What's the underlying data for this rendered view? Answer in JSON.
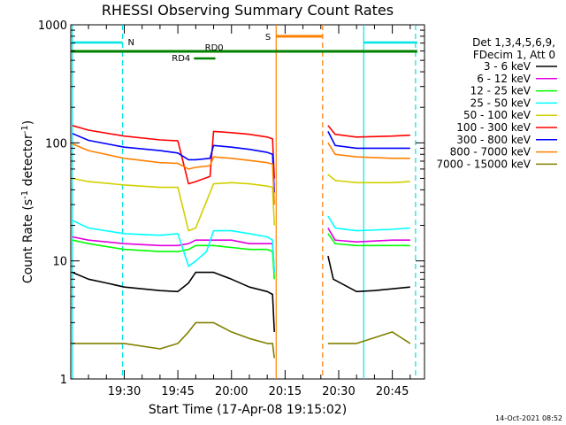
{
  "chart_data": {
    "type": "line",
    "title": "RHESSI Observing Summary Count Rates",
    "xlabel": "Start Time (17-Apr-08 19:15:02)",
    "ylabel_main": "Count Rate (s",
    "ylabel_sup1": "-1",
    "ylabel_mid": " detector",
    "ylabel_sup2": "-1",
    "ylabel_end": ")",
    "y_scale": "log",
    "xlim": [
      "19:15:02",
      "20:54:00"
    ],
    "ylim": [
      1,
      1000
    ],
    "x_ticks": [
      "19:30",
      "19:45",
      "20:00",
      "20:15",
      "20:30",
      "20:45"
    ],
    "y_ticks": [
      "1",
      "10",
      "100",
      "1000"
    ],
    "legend_header": [
      "Det 1,3,4,5,6,9,",
      "FDecim 1, Att 0"
    ],
    "legend_position": "right",
    "footer_timestamp": "14-Oct-2021 08:52",
    "flags": [
      {
        "label": "N",
        "color": "#00e5e5",
        "segments": [
          [
            "19:15:02",
            "19:29:30"
          ],
          [
            "20:37:00",
            "20:52:00"
          ]
        ]
      },
      {
        "label": "S",
        "color": "#ff8000",
        "segments": [
          [
            "20:12:30",
            "20:25:30"
          ]
        ]
      },
      {
        "label": "RD0",
        "color": "#008000",
        "segments": [
          [
            "19:15:02",
            "20:52:00"
          ]
        ]
      },
      {
        "label": "RD4",
        "color": "#008000",
        "segments": [
          [
            "19:49:30",
            "19:55:30"
          ]
        ]
      }
    ],
    "vlines": [
      {
        "time": "19:15:30",
        "color": "#00e5e5",
        "style": "solid"
      },
      {
        "time": "19:29:30",
        "color": "#00e5e5",
        "style": "dashed"
      },
      {
        "time": "20:12:30",
        "color": "#ff8000",
        "style": "solid"
      },
      {
        "time": "20:25:30",
        "color": "#ff8000",
        "style": "dashed"
      },
      {
        "time": "20:37:00",
        "color": "#00e5e5",
        "style": "solid"
      },
      {
        "time": "20:51:30",
        "color": "#00e5e5",
        "style": "dashed"
      }
    ],
    "series": [
      {
        "name": "3 - 6 keV",
        "color": "#000000",
        "points": [
          [
            "19:15:30",
            8
          ],
          [
            "19:20:00",
            7
          ],
          [
            "19:25:00",
            6.5
          ],
          [
            "19:30:00",
            6
          ],
          [
            "19:35:00",
            5.8
          ],
          [
            "19:40:00",
            5.6
          ],
          [
            "19:45:00",
            5.5
          ],
          [
            "19:48:00",
            6.5
          ],
          [
            "19:50:00",
            8
          ],
          [
            "19:55:00",
            8
          ],
          [
            "20:00:00",
            7
          ],
          [
            "20:05:00",
            6
          ],
          [
            "20:10:00",
            5.5
          ],
          [
            "20:11:30",
            5.2
          ],
          [
            "20:12:00",
            2.5
          ],
          [
            "20:27:00",
            11
          ],
          [
            "20:28:30",
            7
          ],
          [
            "20:35:00",
            5.5
          ],
          [
            "20:40:00",
            5.6
          ],
          [
            "20:45:00",
            5.8
          ],
          [
            "20:50:00",
            6
          ]
        ]
      },
      {
        "name": "6 - 12 keV",
        "color": "#e000e0",
        "points": [
          [
            "19:15:30",
            16
          ],
          [
            "19:20:00",
            15
          ],
          [
            "19:30:00",
            14
          ],
          [
            "19:40:00",
            13.5
          ],
          [
            "19:45:00",
            13.5
          ],
          [
            "19:48:00",
            14
          ],
          [
            "19:50:00",
            15
          ],
          [
            "19:55:00",
            15
          ],
          [
            "20:00:00",
            15
          ],
          [
            "20:05:00",
            14
          ],
          [
            "20:10:00",
            14
          ],
          [
            "20:11:30",
            14
          ],
          [
            "20:12:00",
            8
          ],
          [
            "20:27:00",
            19
          ],
          [
            "20:29:00",
            15
          ],
          [
            "20:35:00",
            14.5
          ],
          [
            "20:45:00",
            15
          ],
          [
            "20:50:00",
            15
          ]
        ]
      },
      {
        "name": "12 - 25 keV",
        "color": "#00ff00",
        "points": [
          [
            "19:15:30",
            15
          ],
          [
            "19:20:00",
            14
          ],
          [
            "19:30:00",
            12.5
          ],
          [
            "19:40:00",
            12
          ],
          [
            "19:45:00",
            12
          ],
          [
            "19:48:00",
            12.5
          ],
          [
            "19:50:00",
            13.5
          ],
          [
            "19:55:00",
            13.5
          ],
          [
            "20:00:00",
            13
          ],
          [
            "20:05:00",
            12.5
          ],
          [
            "20:10:00",
            12.5
          ],
          [
            "20:11:30",
            12
          ],
          [
            "20:12:00",
            7
          ],
          [
            "20:27:00",
            17
          ],
          [
            "20:29:00",
            14
          ],
          [
            "20:35:00",
            13.5
          ],
          [
            "20:45:00",
            13.5
          ],
          [
            "20:50:00",
            13.5
          ]
        ]
      },
      {
        "name": "25 - 50 keV",
        "color": "#00ffff",
        "points": [
          [
            "19:15:30",
            22
          ],
          [
            "19:20:00",
            19
          ],
          [
            "19:30:00",
            17
          ],
          [
            "19:40:00",
            16.5
          ],
          [
            "19:45:00",
            17
          ],
          [
            "19:48:00",
            9
          ],
          [
            "19:50:00",
            10
          ],
          [
            "19:53:00",
            12
          ],
          [
            "19:55:00",
            18
          ],
          [
            "20:00:00",
            18
          ],
          [
            "20:05:00",
            17
          ],
          [
            "20:10:00",
            16
          ],
          [
            "20:11:30",
            15
          ],
          [
            "20:12:00",
            8
          ],
          [
            "20:27:00",
            24
          ],
          [
            "20:29:00",
            19
          ],
          [
            "20:35:00",
            18
          ],
          [
            "20:45:00",
            18.5
          ],
          [
            "20:50:00",
            19
          ]
        ]
      },
      {
        "name": "50 - 100 keV",
        "color": "#d0d000",
        "points": [
          [
            "19:15:30",
            50
          ],
          [
            "19:20:00",
            47
          ],
          [
            "19:30:00",
            44
          ],
          [
            "19:40:00",
            42
          ],
          [
            "19:45:00",
            42
          ],
          [
            "19:48:00",
            18
          ],
          [
            "19:50:00",
            19
          ],
          [
            "19:55:00",
            45
          ],
          [
            "20:00:00",
            46
          ],
          [
            "20:05:00",
            45
          ],
          [
            "20:10:00",
            43
          ],
          [
            "20:11:30",
            42
          ],
          [
            "20:12:00",
            20
          ],
          [
            "20:27:00",
            54
          ],
          [
            "20:29:00",
            48
          ],
          [
            "20:35:00",
            46
          ],
          [
            "20:45:00",
            46
          ],
          [
            "20:50:00",
            47
          ]
        ]
      },
      {
        "name": "100 - 300 keV",
        "color": "#ff0000",
        "points": [
          [
            "19:15:30",
            140
          ],
          [
            "19:20:00",
            128
          ],
          [
            "19:30:00",
            114
          ],
          [
            "19:40:00",
            106
          ],
          [
            "19:45:00",
            104
          ],
          [
            "19:48:00",
            45
          ],
          [
            "19:50:00",
            47
          ],
          [
            "19:54:00",
            52
          ],
          [
            "19:55:00",
            125
          ],
          [
            "20:00:00",
            122
          ],
          [
            "20:05:00",
            118
          ],
          [
            "20:10:00",
            112
          ],
          [
            "20:11:30",
            108
          ],
          [
            "20:12:00",
            50
          ],
          [
            "20:27:00",
            140
          ],
          [
            "20:29:00",
            118
          ],
          [
            "20:35:00",
            112
          ],
          [
            "20:45:00",
            114
          ],
          [
            "20:50:00",
            116
          ]
        ]
      },
      {
        "name": "300 - 800 keV",
        "color": "#0000ff",
        "points": [
          [
            "19:15:30",
            120
          ],
          [
            "19:20:00",
            105
          ],
          [
            "19:30:00",
            92
          ],
          [
            "19:40:00",
            86
          ],
          [
            "19:45:00",
            82
          ],
          [
            "19:48:00",
            72
          ],
          [
            "19:50:00",
            72
          ],
          [
            "19:54:00",
            74
          ],
          [
            "19:55:00",
            95
          ],
          [
            "20:00:00",
            92
          ],
          [
            "20:05:00",
            88
          ],
          [
            "20:10:00",
            83
          ],
          [
            "20:11:30",
            80
          ],
          [
            "20:12:00",
            38
          ],
          [
            "20:27:00",
            125
          ],
          [
            "20:29:00",
            95
          ],
          [
            "20:35:00",
            90
          ],
          [
            "20:45:00",
            90
          ],
          [
            "20:50:00",
            90
          ]
        ]
      },
      {
        "name": "800 - 7000 keV",
        "color": "#ff8000",
        "points": [
          [
            "19:15:30",
            98
          ],
          [
            "19:20:00",
            86
          ],
          [
            "19:30:00",
            74
          ],
          [
            "19:40:00",
            68
          ],
          [
            "19:45:00",
            67
          ],
          [
            "19:48:00",
            60
          ],
          [
            "19:50:00",
            62
          ],
          [
            "19:54:00",
            64
          ],
          [
            "19:55:00",
            76
          ],
          [
            "20:00:00",
            74
          ],
          [
            "20:05:00",
            71
          ],
          [
            "20:10:00",
            68
          ],
          [
            "20:11:30",
            66
          ],
          [
            "20:12:00",
            30
          ],
          [
            "20:27:00",
            100
          ],
          [
            "20:29:00",
            80
          ],
          [
            "20:35:00",
            76
          ],
          [
            "20:45:00",
            74
          ],
          [
            "20:50:00",
            74
          ]
        ]
      },
      {
        "name": "7000 - 15000 keV",
        "color": "#808000",
        "points": [
          [
            "19:15:30",
            2
          ],
          [
            "19:20:00",
            2
          ],
          [
            "19:30:00",
            2
          ],
          [
            "19:40:00",
            1.8
          ],
          [
            "19:45:00",
            2
          ],
          [
            "19:48:00",
            2.5
          ],
          [
            "19:50:00",
            3
          ],
          [
            "19:55:00",
            3
          ],
          [
            "20:00:00",
            2.5
          ],
          [
            "20:05:00",
            2.2
          ],
          [
            "20:10:00",
            2
          ],
          [
            "20:11:30",
            2
          ],
          [
            "20:12:00",
            1.5
          ],
          [
            "20:27:00",
            2
          ],
          [
            "20:35:00",
            2
          ],
          [
            "20:45:00",
            2.5
          ],
          [
            "20:50:00",
            2
          ]
        ]
      }
    ]
  }
}
